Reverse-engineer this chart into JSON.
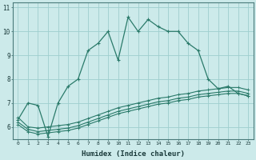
{
  "xlabel": "Humidex (Indice chaleur)",
  "ylabel": "",
  "background_color": "#cceaea",
  "grid_color": "#9ecece",
  "line_color": "#2a7a6a",
  "xlim": [
    -0.5,
    23.5
  ],
  "ylim": [
    5.5,
    11.2
  ],
  "yticks": [
    6,
    7,
    8,
    9,
    10,
    11
  ],
  "xticks": [
    0,
    1,
    2,
    3,
    4,
    5,
    6,
    7,
    8,
    9,
    10,
    11,
    12,
    13,
    14,
    15,
    16,
    17,
    18,
    19,
    20,
    21,
    22,
    23
  ],
  "series1_x": [
    0,
    1,
    2,
    3,
    4,
    5,
    6,
    7,
    8,
    9,
    10,
    11,
    12,
    13,
    14,
    15,
    16,
    17,
    18,
    19,
    20,
    21,
    22,
    23
  ],
  "series1_y": [
    6.3,
    7.0,
    6.9,
    5.6,
    7.0,
    7.7,
    8.0,
    9.2,
    9.5,
    10.0,
    8.8,
    10.6,
    10.0,
    10.5,
    10.2,
    10.0,
    10.0,
    9.5,
    9.2,
    8.0,
    7.6,
    7.7,
    7.4,
    7.3
  ],
  "series2_x": [
    0,
    1,
    2,
    3,
    4,
    5,
    6,
    7,
    8,
    9,
    10,
    11,
    12,
    13,
    14,
    15,
    16,
    17,
    18,
    19,
    20,
    21,
    22,
    23
  ],
  "series2_y": [
    6.4,
    6.0,
    5.95,
    6.0,
    6.05,
    6.1,
    6.2,
    6.35,
    6.5,
    6.65,
    6.8,
    6.9,
    7.0,
    7.1,
    7.2,
    7.25,
    7.35,
    7.4,
    7.5,
    7.55,
    7.6,
    7.65,
    7.65,
    7.55
  ],
  "series3_x": [
    0,
    1,
    2,
    3,
    4,
    5,
    6,
    7,
    8,
    9,
    10,
    11,
    12,
    13,
    14,
    15,
    16,
    17,
    18,
    19,
    20,
    21,
    22,
    23
  ],
  "series3_y": [
    6.2,
    5.9,
    5.8,
    5.85,
    5.9,
    5.95,
    6.05,
    6.2,
    6.35,
    6.5,
    6.65,
    6.75,
    6.85,
    6.95,
    7.05,
    7.1,
    7.2,
    7.25,
    7.35,
    7.4,
    7.45,
    7.5,
    7.5,
    7.4
  ],
  "series4_x": [
    0,
    1,
    2,
    3,
    4,
    5,
    6,
    7,
    8,
    9,
    10,
    11,
    12,
    13,
    14,
    15,
    16,
    17,
    18,
    19,
    20,
    21,
    22,
    23
  ],
  "series4_y": [
    6.1,
    5.8,
    5.7,
    5.75,
    5.8,
    5.85,
    5.95,
    6.1,
    6.25,
    6.4,
    6.55,
    6.65,
    6.75,
    6.85,
    6.95,
    7.0,
    7.1,
    7.15,
    7.25,
    7.3,
    7.35,
    7.4,
    7.4,
    7.3
  ]
}
